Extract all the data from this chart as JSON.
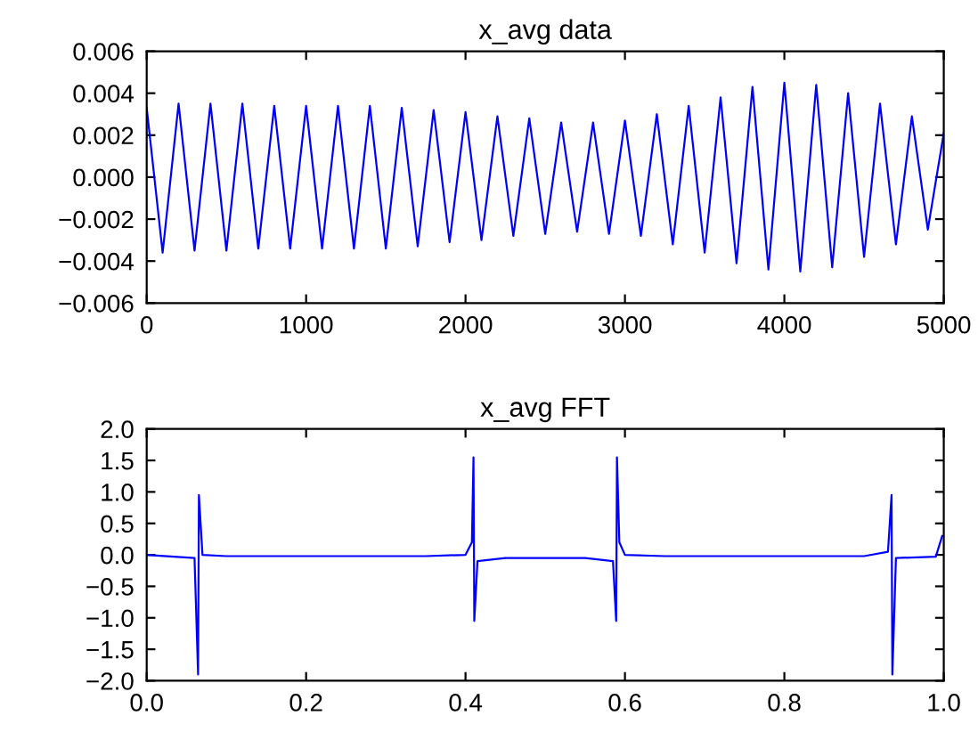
{
  "chart_data": [
    {
      "type": "line",
      "title": "x_avg data",
      "xlim": [
        0,
        5000
      ],
      "xticks": [
        0,
        1000,
        2000,
        3000,
        4000,
        5000
      ],
      "ylim": [
        -0.006,
        0.006
      ],
      "yticks": [
        {
          "value": -0.006,
          "label": "−0.006"
        },
        {
          "value": -0.004,
          "label": "−0.004"
        },
        {
          "value": -0.002,
          "label": "−0.002"
        },
        {
          "value": 0,
          "label": "0.000"
        },
        {
          "value": 0.002,
          "label": "0.002"
        },
        {
          "value": 0.004,
          "label": "0.004"
        },
        {
          "value": 0.006,
          "label": "0.006"
        }
      ],
      "grid": false,
      "legend": false,
      "series": [
        {
          "color": "#0000ff",
          "x": [
            0,
            100,
            200,
            300,
            400,
            500,
            600,
            700,
            800,
            900,
            1000,
            1100,
            1200,
            1300,
            1400,
            1500,
            1600,
            1700,
            1800,
            1900,
            2000,
            2100,
            2200,
            2300,
            2400,
            2500,
            2600,
            2700,
            2800,
            2900,
            3000,
            3100,
            3200,
            3300,
            3400,
            3500,
            3600,
            3700,
            3800,
            3900,
            4000,
            4100,
            4200,
            4300,
            4400,
            4500,
            4600,
            4700,
            4800,
            4900,
            5000
          ],
          "values": [
            0.0033,
            -0.0036,
            0.0035,
            -0.0035,
            0.0035,
            -0.0035,
            0.0035,
            -0.0034,
            0.0034,
            -0.0034,
            0.0034,
            -0.0034,
            0.0034,
            -0.0034,
            0.0034,
            -0.0034,
            0.0033,
            -0.0033,
            0.0032,
            -0.0031,
            0.0031,
            -0.003,
            0.0029,
            -0.0028,
            0.0028,
            -0.0027,
            0.0026,
            -0.0026,
            0.0026,
            -0.0027,
            0.0027,
            -0.0028,
            0.003,
            -0.0032,
            0.0034,
            -0.0036,
            0.0038,
            -0.0041,
            0.0043,
            -0.0044,
            0.0045,
            -0.0045,
            0.0044,
            -0.0043,
            0.004,
            -0.0038,
            0.0035,
            -0.0032,
            0.0029,
            -0.0025,
            0.0021
          ]
        }
      ]
    },
    {
      "type": "line",
      "title": "x_avg FFT",
      "xlim": [
        0,
        1
      ],
      "xticks": [
        {
          "value": 0,
          "label": "0.0"
        },
        {
          "value": 0.2,
          "label": "0.2"
        },
        {
          "value": 0.4,
          "label": "0.4"
        },
        {
          "value": 0.6,
          "label": "0.6"
        },
        {
          "value": 0.8,
          "label": "0.8"
        },
        {
          "value": 1,
          "label": "1.0"
        }
      ],
      "ylim": [
        -2,
        2
      ],
      "yticks": [
        {
          "value": -2,
          "label": "−2.0"
        },
        {
          "value": -1.5,
          "label": "−1.5"
        },
        {
          "value": -1,
          "label": "−1.0"
        },
        {
          "value": -0.5,
          "label": "−0.5"
        },
        {
          "value": 0,
          "label": "0.0"
        },
        {
          "value": 0.5,
          "label": "0.5"
        },
        {
          "value": 1,
          "label": "1.0"
        },
        {
          "value": 1.5,
          "label": "1.5"
        },
        {
          "value": 2,
          "label": "2.0"
        }
      ],
      "grid": false,
      "legend": false,
      "series": [
        {
          "color": "#0000ff",
          "x": [
            0,
            0.06,
            0.0645,
            0.0655,
            0.07,
            0.1,
            0.35,
            0.4,
            0.408,
            0.41,
            0.411,
            0.415,
            0.45,
            0.55,
            0.585,
            0.589,
            0.59,
            0.593,
            0.6,
            0.65,
            0.9,
            0.93,
            0.9345,
            0.9355,
            0.94,
            0.99,
            0.998
          ],
          "values": [
            0,
            -0.05,
            -1.9,
            0.95,
            0,
            -0.02,
            -0.02,
            0,
            0.2,
            1.55,
            -1.05,
            -0.1,
            -0.05,
            -0.05,
            -0.1,
            -1.05,
            1.55,
            0.2,
            0,
            -0.02,
            -0.02,
            0.05,
            0.95,
            -1.9,
            -0.05,
            -0.03,
            0.3
          ]
        }
      ]
    }
  ]
}
